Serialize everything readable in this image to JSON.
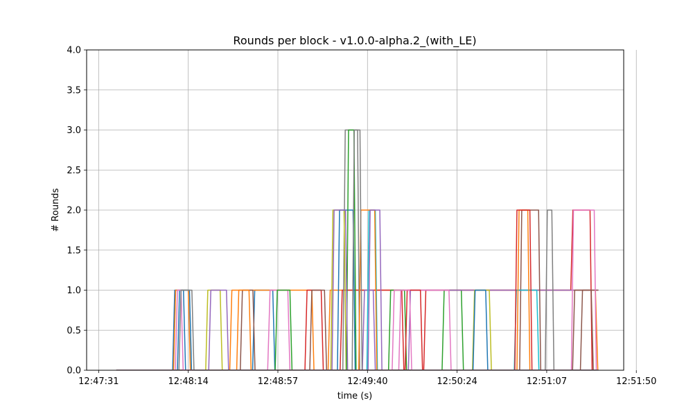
{
  "chart_data": {
    "type": "line",
    "title": "Rounds per block  -  v1.0.0-alpha.2_(with_LE)",
    "xlabel": "time (s)",
    "ylabel": "# Rounds",
    "xlim_seconds": [
      -4.0,
      174.6
    ],
    "ylim": [
      0,
      4
    ],
    "x_ticks": [
      {
        "label": "12:47:31",
        "seconds": 0
      },
      {
        "label": "12:48:14",
        "seconds": 29.8
      },
      {
        "label": "12:48:57",
        "seconds": 59.6
      },
      {
        "label": "12:49:40",
        "seconds": 89.4
      },
      {
        "label": "12:50:24",
        "seconds": 119.2
      },
      {
        "label": "12:51:07",
        "seconds": 149.0
      },
      {
        "label": "12:51:50",
        "seconds": 178.8
      }
    ],
    "y_ticks": [
      "0.0",
      "0.5",
      "1.0",
      "1.5",
      "2.0",
      "2.5",
      "3.0",
      "3.5",
      "4.0"
    ],
    "y_tick_values": [
      0,
      0.5,
      1.0,
      1.5,
      2.0,
      2.5,
      3.0,
      3.5,
      4.0
    ],
    "grid": true,
    "legend": "none",
    "colors": [
      "#1f77b4",
      "#ff7f0e",
      "#2ca02c",
      "#d62728",
      "#9467bd",
      "#8c564b",
      "#e377c2",
      "#7f7f7f",
      "#bcbd22",
      "#17becf"
    ],
    "series": [
      {
        "x": [
          5.9,
          24.6,
          25.3,
          28.2,
          28.9,
          32.8,
          33.5,
          40.8,
          41.5,
          44.9,
          45.6,
          51.2,
          51.9,
          57.9,
          58.6,
          166.2
        ],
        "y": [
          0,
          0,
          1,
          1,
          0,
          0,
          0,
          0,
          0,
          0,
          0,
          0,
          1,
          1,
          0,
          0
        ]
      },
      {
        "x": [
          5.9,
          24.9,
          25.6,
          29.8,
          30.5,
          43.6,
          44.3,
          70.9,
          71.6,
          76.3,
          77.0,
          165.2,
          166.0,
          166.2
        ],
        "y": [
          0,
          0,
          1,
          1,
          0,
          0,
          1,
          1,
          0,
          0,
          1,
          1,
          0,
          0
        ]
      },
      {
        "x": [
          5.9,
          114.2,
          114.9,
          120.6,
          121.3,
          166.2
        ],
        "y": [
          0,
          0,
          1,
          1,
          0,
          0
        ]
      },
      {
        "x": [
          5.9,
          68.6,
          69.3,
          74.0,
          74.7,
          80.3,
          81.0,
          100.8,
          101.5,
          108.1,
          108.8,
          157.0,
          157.7,
          163.4,
          164.1,
          166.2
        ],
        "y": [
          0,
          0,
          1,
          1,
          0,
          0,
          1,
          1,
          0,
          0,
          1,
          1,
          2,
          2,
          0,
          0
        ]
      },
      {
        "x": [
          5.9,
          87.7,
          88.4,
          91.3,
          92.0,
          103.0,
          103.7,
          166.2
        ],
        "y": [
          0,
          0,
          1,
          1,
          0,
          0,
          1,
          1
        ]
      },
      {
        "x": [
          5.9,
          47.1,
          47.8,
          51.3,
          52.0,
          140.0,
          140.7,
          146.3,
          147.0,
          157.6,
          158.3,
          166.2
        ],
        "y": [
          0,
          0,
          1,
          1,
          0,
          0,
          2,
          2,
          0,
          0,
          1,
          1
        ]
      },
      {
        "x": [
          5.9,
          56.2,
          57.0,
          62.9,
          63.6,
          99.8,
          100.5,
          116.5,
          117.2,
          157.2,
          157.9,
          164.8,
          165.5,
          166.2
        ],
        "y": [
          0,
          0,
          1,
          1,
          0,
          0,
          1,
          1,
          0,
          0,
          2,
          2,
          0,
          0
        ]
      },
      {
        "x": [
          5.9,
          81.2,
          82.0,
          86.1,
          86.8,
          148.5,
          149.2,
          150.7,
          151.4,
          166.2
        ],
        "y": [
          0,
          0,
          3,
          3,
          0,
          0,
          2,
          2,
          0,
          0
        ]
      },
      {
        "x": [
          5.9,
          35.6,
          36.3,
          40.4,
          41.1,
          77.2,
          77.9,
          81.6,
          82.3,
          124.3,
          125.0,
          129.9,
          130.6,
          166.2
        ],
        "y": [
          0,
          0,
          1,
          1,
          0,
          0,
          2,
          2,
          0,
          0,
          1,
          1,
          0,
          0
        ]
      },
      {
        "x": [
          5.9,
          89.2,
          89.9,
          92.0,
          92.7,
          138.2,
          138.9,
          145.7,
          146.4,
          166.2
        ],
        "y": [
          0,
          0,
          2,
          2,
          0,
          0,
          1,
          1,
          0,
          0
        ]
      },
      {
        "x": [
          5.9,
          26.2,
          26.9,
          30.2,
          30.9,
          79.4,
          80.1,
          84.6,
          85.3,
          124.5,
          125.2,
          128.7,
          129.4,
          166.2
        ],
        "y": [
          0,
          0,
          1,
          1,
          0,
          0,
          2,
          2,
          0,
          0,
          1,
          1,
          0,
          0
        ]
      },
      {
        "x": [
          5.9,
          45.9,
          46.6,
          50.0,
          50.7,
          86.5,
          87.2,
          91.8,
          92.5,
          139.1,
          139.8,
          142.7,
          143.4,
          166.2
        ],
        "y": [
          0,
          0,
          1,
          1,
          0,
          0,
          2,
          2,
          0,
          0,
          2,
          2,
          0,
          0
        ]
      },
      {
        "x": [
          5.9,
          58.7,
          59.4,
          63.6,
          64.3,
          82.4,
          83.1,
          84.9,
          85.6,
          96.4,
          97.1,
          101.7,
          102.4,
          166.2
        ],
        "y": [
          0,
          0,
          1,
          1,
          0,
          0,
          3,
          3,
          0,
          0,
          1,
          1,
          0,
          0
        ]
      },
      {
        "x": [
          5.9,
          101.9,
          102.6,
          107.0,
          107.7,
          138.4,
          139.1,
          143.4,
          144.1,
          166.2
        ],
        "y": [
          0,
          0,
          1,
          1,
          0,
          0,
          2,
          2,
          0,
          0
        ]
      },
      {
        "x": [
          5.9,
          36.6,
          37.3,
          42.5,
          43.2,
          77.6,
          78.3,
          82.1,
          82.8,
          89.6,
          90.3,
          93.5,
          94.2,
          166.2
        ],
        "y": [
          0,
          0,
          1,
          1,
          0,
          0,
          2,
          2,
          0,
          0,
          2,
          2,
          0,
          0
        ]
      },
      {
        "x": [
          5.9,
          70.2,
          70.9,
          75.1,
          75.8,
          160.2,
          160.9,
          163.8,
          164.5,
          166.2
        ],
        "y": [
          0,
          0,
          1,
          1,
          0,
          0,
          1,
          1,
          0,
          0
        ]
      },
      {
        "x": [
          5.9,
          25.5,
          26.2,
          27.4,
          28.1,
          97.6,
          98.3,
          103.4,
          104.1,
          166.2
        ],
        "y": [
          0,
          0,
          1,
          1,
          0,
          0,
          1,
          1,
          0,
          0
        ]
      },
      {
        "x": [
          5.9,
          26.7,
          27.4,
          31.0,
          31.7,
          84.3,
          85.0,
          86.9,
          87.6,
          166.2
        ],
        "y": [
          0,
          0,
          1,
          1,
          0,
          0,
          3,
          3,
          0,
          0
        ]
      }
    ]
  }
}
